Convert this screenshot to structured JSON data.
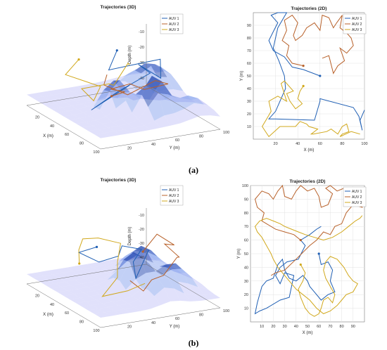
{
  "panel_labels": [
    "(a)",
    "(b)"
  ],
  "series_colors": {
    "AUV 1": "#1f5fb4",
    "AUV 2": "#b8612a",
    "AUV 3": "#d1a81c"
  },
  "surface_colors": {
    "low": "#c9c8f7",
    "mid": "#8fa9ee",
    "high": "#bdf2dc",
    "peak": "#2b4fb5"
  },
  "chart_data": [
    {
      "type": "line",
      "subtype": "3d",
      "title": "Trajectories (3D)",
      "xlabel": "X (m)",
      "ylabel": "Y (m)",
      "zlabel": "Depth (m)",
      "xlim": [
        0,
        100
      ],
      "ylim": [
        0,
        100
      ],
      "zlim": [
        -45,
        -5
      ],
      "xticks": [
        20,
        40,
        60,
        80,
        100
      ],
      "yticks": [
        20,
        40,
        60,
        80,
        100
      ],
      "zticks": [
        -10,
        -20,
        -30,
        -40
      ],
      "legend": "top-right",
      "series": [
        {
          "name": "AUV 1",
          "points": [
            [
              25,
              60,
              -10
            ],
            [
              30,
              50,
              -20
            ],
            [
              42,
              60,
              -15
            ],
            [
              48,
              82,
              -12
            ],
            [
              60,
              75,
              -20
            ],
            [
              62,
              55,
              -8
            ],
            [
              70,
              60,
              -12
            ],
            [
              58,
              40,
              -25
            ],
            [
              55,
              20,
              -35
            ],
            [
              58,
              50,
              -22
            ]
          ]
        },
        {
          "name": "AUV 2",
          "points": [
            [
              50,
              40,
              -30
            ],
            [
              60,
              45,
              -25
            ],
            [
              65,
              30,
              -20
            ],
            [
              75,
              40,
              -15
            ],
            [
              70,
              55,
              -22
            ],
            [
              78,
              70,
              -18
            ],
            [
              85,
              55,
              -12
            ],
            [
              80,
              35,
              -20
            ],
            [
              72,
              20,
              -14
            ],
            [
              60,
              30,
              -12
            ]
          ]
        },
        {
          "name": "AUV 3",
          "points": [
            [
              30,
              25,
              -10
            ],
            [
              20,
              20,
              -22
            ],
            [
              35,
              40,
              -28
            ],
            [
              42,
              30,
              -34
            ],
            [
              50,
              15,
              -22
            ],
            [
              55,
              35,
              -20
            ],
            [
              45,
              45,
              -25
            ],
            [
              40,
              60,
              -14
            ],
            [
              50,
              55,
              -12
            ]
          ]
        }
      ]
    },
    {
      "type": "line",
      "title": "Trajectories (2D)",
      "xlabel": "X (m)",
      "ylabel": "Y (m)",
      "xlim": [
        0,
        100
      ],
      "ylim": [
        0,
        100
      ],
      "xticks": [
        20,
        40,
        60,
        80,
        100
      ],
      "yticks": [
        10,
        20,
        30,
        40,
        50,
        60,
        70,
        80,
        90
      ],
      "grid": true,
      "legend": "top-right",
      "series": [
        {
          "name": "AUV 1",
          "x": [
            60,
            45,
            35,
            28,
            18,
            14,
            18,
            22,
            16,
            22,
            30,
            22,
            18,
            23,
            28,
            29,
            20,
            14,
            20,
            55,
            60,
            60,
            90,
            95,
            98,
            96,
            100
          ],
          "y": [
            50,
            55,
            57,
            65,
            70,
            78,
            85,
            92,
            98,
            100,
            100,
            88,
            72,
            62,
            50,
            40,
            22,
            16,
            16,
            15,
            30,
            32,
            25,
            18,
            7,
            15,
            23
          ]
        },
        {
          "name": "AUV 2",
          "x": [
            45,
            35,
            30,
            32,
            26,
            30,
            28,
            35,
            40,
            36,
            38,
            44,
            48,
            55,
            60,
            62,
            68,
            72,
            75,
            80,
            78,
            84,
            90,
            86,
            84,
            88,
            90,
            84,
            78,
            82,
            76,
            72,
            68,
            62
          ],
          "y": [
            58,
            60,
            66,
            74,
            78,
            86,
            94,
            98,
            92,
            82,
            78,
            82,
            88,
            92,
            86,
            98,
            96,
            88,
            92,
            98,
            88,
            84,
            94,
            98,
            84,
            80,
            74,
            68,
            72,
            62,
            58,
            52,
            66,
            64
          ]
        },
        {
          "name": "AUV 3",
          "x": [
            45,
            42,
            40,
            44,
            38,
            33,
            30,
            36,
            28,
            25,
            30,
            22,
            14,
            16,
            12,
            8,
            14,
            24,
            38,
            42,
            48,
            50,
            58,
            52,
            54,
            66,
            70,
            76,
            80,
            84,
            86,
            80,
            78,
            88,
            96
          ],
          "y": [
            42,
            38,
            32,
            28,
            24,
            30,
            36,
            38,
            46,
            44,
            30,
            34,
            30,
            22,
            16,
            10,
            2,
            10,
            10,
            14,
            12,
            10,
            8,
            4,
            4,
            6,
            8,
            4,
            10,
            12,
            6,
            4,
            2,
            6,
            4
          ]
        }
      ]
    },
    {
      "type": "line",
      "subtype": "3d",
      "title": "Trajectories (3D)",
      "xlabel": "X (m)",
      "ylabel": "Y (m)",
      "zlabel": "Depth (m)",
      "xlim": [
        0,
        100
      ],
      "ylim": [
        0,
        100
      ],
      "zlim": [
        -45,
        -5
      ],
      "xticks": [
        20,
        40,
        60,
        80,
        100
      ],
      "yticks": [
        20,
        40,
        60,
        80,
        100
      ],
      "zticks": [
        -10,
        -20,
        -30,
        -40
      ],
      "legend": "top-right",
      "series": [
        {
          "name": "AUV 1",
          "points": [
            [
              30,
              40,
              -15
            ],
            [
              22,
              30,
              -20
            ],
            [
              25,
              45,
              -28
            ],
            [
              35,
              55,
              -22
            ],
            [
              48,
              50,
              -10
            ],
            [
              55,
              62,
              -12
            ],
            [
              60,
              52,
              -18
            ],
            [
              70,
              48,
              -26
            ],
            [
              68,
              60,
              -8
            ]
          ]
        },
        {
          "name": "AUV 2",
          "points": [
            [
              52,
              65,
              -15
            ],
            [
              50,
              78,
              -5
            ],
            [
              62,
              85,
              -10
            ],
            [
              70,
              72,
              -5
            ],
            [
              80,
              78,
              -12
            ],
            [
              90,
              70,
              -8
            ],
            [
              88,
              60,
              -20
            ],
            [
              80,
              55,
              -25
            ],
            [
              85,
              45,
              -30
            ],
            [
              75,
              40,
              -25
            ]
          ]
        },
        {
          "name": "AUV 3",
          "points": [
            [
              42,
              18,
              -20
            ],
            [
              30,
              25,
              -15
            ],
            [
              24,
              32,
              -10
            ],
            [
              32,
              40,
              -8
            ],
            [
              38,
              55,
              -12
            ],
            [
              50,
              45,
              -20
            ],
            [
              58,
              40,
              -28
            ],
            [
              70,
              20,
              -35
            ],
            [
              80,
              35,
              -30
            ],
            [
              92,
              42,
              -22
            ]
          ]
        }
      ]
    },
    {
      "type": "line",
      "title": "Trajectories (2D)",
      "xlabel": "X (m)",
      "ylabel": "Y (m)",
      "xlim": [
        0,
        100
      ],
      "ylim": [
        0,
        100
      ],
      "xticks": [
        10,
        20,
        30,
        40,
        50,
        60,
        70,
        80,
        90
      ],
      "yticks": [
        10,
        20,
        30,
        40,
        50,
        60,
        70,
        80,
        90,
        100
      ],
      "grid": true,
      "legend": "top-right",
      "series": [
        {
          "name": "AUV 1",
          "x": [
            60,
            62,
            68,
            72,
            70,
            74,
            68,
            62,
            56,
            52,
            50,
            46,
            40,
            34,
            30,
            28,
            24,
            20,
            14,
            10,
            6,
            4,
            8,
            14,
            26,
            34,
            38,
            30,
            26,
            22,
            26,
            32,
            42,
            48,
            44,
            52,
            58,
            62
          ],
          "y": [
            50,
            42,
            44,
            38,
            30,
            22,
            20,
            16,
            22,
            26,
            30,
            34,
            30,
            32,
            38,
            46,
            42,
            32,
            30,
            26,
            14,
            6,
            8,
            10,
            16,
            18,
            34,
            36,
            28,
            34,
            40,
            44,
            46,
            56,
            60,
            64,
            68,
            70
          ]
        },
        {
          "name": "AUV 2",
          "x": [
            44,
            38,
            30,
            22,
            14,
            10,
            12,
            6,
            4,
            10,
            16,
            20,
            24,
            28,
            30,
            36,
            40,
            44,
            50,
            56,
            60,
            62,
            68,
            72,
            66,
            70,
            76,
            82,
            86,
            92,
            96,
            98,
            90,
            84,
            80,
            74,
            70,
            64,
            58,
            52,
            40,
            30,
            22,
            18
          ],
          "y": [
            60,
            64,
            66,
            68,
            72,
            74,
            80,
            84,
            90,
            96,
            94,
            90,
            96,
            100,
            92,
            90,
            96,
            100,
            96,
            98,
            92,
            84,
            86,
            94,
            98,
            100,
            96,
            98,
            92,
            94,
            90,
            84,
            86,
            80,
            72,
            70,
            64,
            66,
            60,
            56,
            46,
            38,
            36,
            34
          ]
        },
        {
          "name": "AUV 3",
          "x": [
            44,
            48,
            46,
            42,
            44,
            46,
            48,
            52,
            56,
            60,
            62,
            64,
            68,
            72,
            74,
            70,
            66,
            64,
            66,
            70,
            76,
            82,
            86,
            90,
            94,
            90,
            84,
            80,
            76,
            70,
            64,
            58,
            52,
            46,
            40,
            34,
            28,
            24,
            20,
            18,
            14,
            10,
            6,
            4,
            8,
            14,
            20,
            26,
            30,
            36,
            42,
            48,
            56,
            64,
            72,
            80,
            86,
            92,
            96,
            98
          ],
          "y": [
            42,
            36,
            30,
            24,
            18,
            14,
            10,
            6,
            4,
            6,
            10,
            16,
            18,
            14,
            20,
            26,
            32,
            38,
            44,
            48,
            46,
            40,
            34,
            30,
            28,
            22,
            20,
            16,
            12,
            8,
            6,
            10,
            16,
            20,
            24,
            30,
            36,
            40,
            46,
            50,
            56,
            62,
            66,
            70,
            74,
            76,
            74,
            72,
            70,
            68,
            66,
            64,
            62,
            60,
            62,
            66,
            70,
            74,
            76,
            78
          ]
        }
      ]
    }
  ]
}
